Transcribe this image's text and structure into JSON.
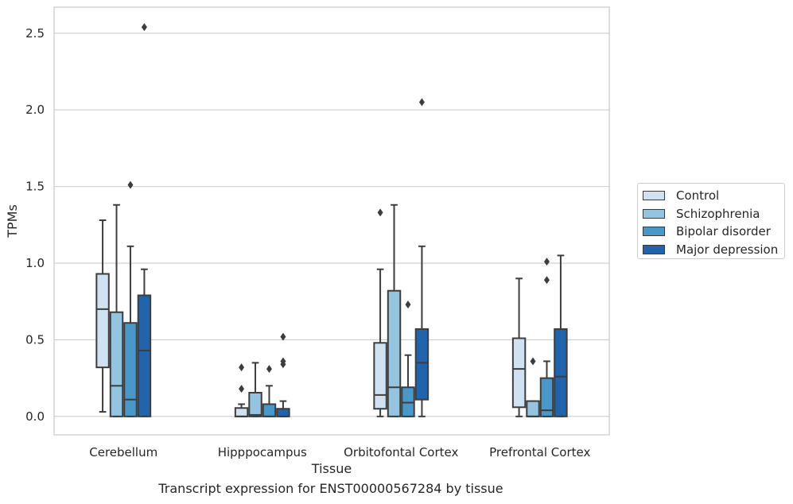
{
  "chart_data": {
    "type": "box",
    "xlabel": "Tissue",
    "ylabel": "TPMs",
    "ylim": [
      -0.12,
      2.67
    ],
    "yticks": [
      "0.0",
      "0.5",
      "1.0",
      "1.5",
      "2.0",
      "2.5"
    ],
    "categories": [
      "Cerebellum",
      "Hipppocampus",
      "Orbitofontal Cortex",
      "Prefrontal Cortex"
    ],
    "series": [
      {
        "name": "Control",
        "color": "#d0e1f2",
        "boxes": [
          {
            "min": 0.03,
            "q1": 0.32,
            "median": 0.7,
            "q3": 0.93,
            "max": 1.28,
            "outliers": []
          },
          {
            "min": 0.0,
            "q1": 0.0,
            "median": 0.0,
            "q3": 0.055,
            "max": 0.08,
            "outliers": [
              0.18,
              0.32
            ]
          },
          {
            "min": 0.0,
            "q1": 0.05,
            "median": 0.14,
            "q3": 0.48,
            "max": 0.96,
            "outliers": [
              1.33
            ]
          },
          {
            "min": 0.0,
            "q1": 0.06,
            "median": 0.31,
            "q3": 0.51,
            "max": 0.9,
            "outliers": []
          }
        ]
      },
      {
        "name": "Schizophrenia",
        "color": "#94c4df",
        "boxes": [
          {
            "min": 0.0,
            "q1": 0.0,
            "median": 0.2,
            "q3": 0.68,
            "max": 1.38,
            "outliers": []
          },
          {
            "min": 0.0,
            "q1": 0.0,
            "median": 0.01,
            "q3": 0.155,
            "max": 0.35,
            "outliers": []
          },
          {
            "min": 0.0,
            "q1": 0.0,
            "median": 0.19,
            "q3": 0.82,
            "max": 1.38,
            "outliers": []
          },
          {
            "min": 0.0,
            "q1": 0.0,
            "median": 0.0,
            "q3": 0.1,
            "max": 0.1,
            "outliers": [
              0.36
            ]
          }
        ]
      },
      {
        "name": "Bipolar disorder",
        "color": "#4a98c9",
        "boxes": [
          {
            "min": 0.0,
            "q1": 0.0,
            "median": 0.11,
            "q3": 0.61,
            "max": 1.11,
            "outliers": [
              1.51
            ]
          },
          {
            "min": 0.0,
            "q1": 0.0,
            "median": 0.0,
            "q3": 0.08,
            "max": 0.2,
            "outliers": [
              0.31
            ]
          },
          {
            "min": 0.0,
            "q1": 0.0,
            "median": 0.09,
            "q3": 0.19,
            "max": 0.4,
            "outliers": [
              0.73
            ]
          },
          {
            "min": 0.0,
            "q1": 0.0,
            "median": 0.04,
            "q3": 0.25,
            "max": 0.36,
            "outliers": [
              0.89,
              1.01
            ]
          }
        ]
      },
      {
        "name": "Major depression",
        "color": "#2164ab",
        "boxes": [
          {
            "min": 0.0,
            "q1": 0.0,
            "median": 0.43,
            "q3": 0.79,
            "max": 0.96,
            "outliers": [
              2.54
            ]
          },
          {
            "min": 0.0,
            "q1": 0.0,
            "median": 0.0,
            "q3": 0.05,
            "max": 0.1,
            "outliers": [
              0.34,
              0.36,
              0.52
            ]
          },
          {
            "min": 0.0,
            "q1": 0.11,
            "median": 0.35,
            "q3": 0.57,
            "max": 1.11,
            "outliers": [
              2.05
            ]
          },
          {
            "min": 0.0,
            "q1": 0.0,
            "median": 0.26,
            "q3": 0.57,
            "max": 1.05,
            "outliers": []
          }
        ]
      }
    ],
    "grid": "horizontal",
    "legend": "right"
  },
  "caption": "Transcript expression for ENST00000567284 by tissue"
}
